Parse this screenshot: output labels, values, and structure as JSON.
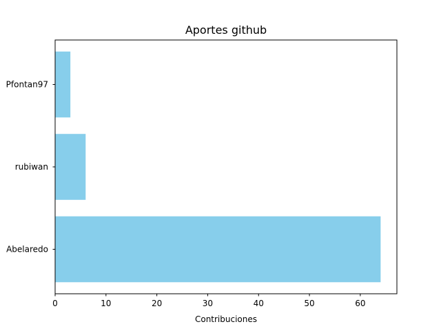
{
  "chart_data": {
    "type": "bar",
    "orientation": "horizontal",
    "title": "Aportes github",
    "xlabel": "Contribuciones",
    "ylabel": "",
    "categories": [
      "Abelaredo",
      "rubiwan",
      "Pfontan97"
    ],
    "values": [
      64,
      6,
      3
    ],
    "xlim": [
      0,
      67.2
    ],
    "xticks": [
      0,
      10,
      20,
      30,
      40,
      50,
      60
    ],
    "bar_color": "#87ceeb",
    "grid": false,
    "legend": "none"
  }
}
